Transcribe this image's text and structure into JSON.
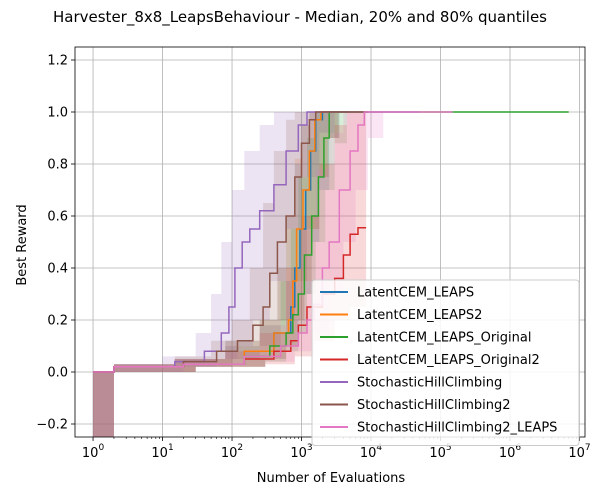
{
  "chart_data": {
    "type": "line",
    "title": "Harvester_8x8_LeapsBehaviour - Median, 20% and 80% quantiles",
    "xlabel": "Number of Evaluations",
    "ylabel": "Best Reward",
    "xscale": "log",
    "xlim": [
      0.55,
      12000000
    ],
    "ylim": [
      -0.25,
      1.25
    ],
    "grid": true,
    "legend_position": "bottom-right",
    "xticks": [
      {
        "value": 1,
        "base": "10",
        "exp": "0"
      },
      {
        "value": 10,
        "base": "10",
        "exp": "1"
      },
      {
        "value": 100,
        "base": "10",
        "exp": "2"
      },
      {
        "value": 1000,
        "base": "10",
        "exp": "3"
      },
      {
        "value": 10000,
        "base": "10",
        "exp": "4"
      },
      {
        "value": 100000,
        "base": "10",
        "exp": "5"
      },
      {
        "value": 1000000,
        "base": "10",
        "exp": "6"
      },
      {
        "value": 10000000,
        "base": "10",
        "exp": "7"
      }
    ],
    "yticks": [
      {
        "value": -0.2,
        "label": "−0.2"
      },
      {
        "value": 0.0,
        "label": "0.0"
      },
      {
        "value": 0.2,
        "label": "0.2"
      },
      {
        "value": 0.4,
        "label": "0.4"
      },
      {
        "value": 0.6,
        "label": "0.6"
      },
      {
        "value": 0.8,
        "label": "0.8"
      },
      {
        "value": 1.0,
        "label": "1.0"
      },
      {
        "value": 1.2,
        "label": "1.2"
      }
    ],
    "series": [
      {
        "name": "LatentCEM_LEAPS",
        "color": "#1f77b4",
        "median": [
          [
            1,
            0
          ],
          [
            2,
            0.02
          ],
          [
            20,
            0.03
          ],
          [
            150,
            0.08
          ],
          [
            400,
            0.15
          ],
          [
            700,
            0.25
          ],
          [
            800,
            0.4
          ],
          [
            950,
            0.55
          ],
          [
            1150,
            0.7
          ],
          [
            1350,
            0.85
          ],
          [
            1600,
            0.97
          ],
          [
            2000,
            1.0
          ],
          [
            5000,
            1.0
          ]
        ],
        "q20": [
          [
            1,
            -0.25
          ],
          [
            2,
            0
          ],
          [
            30,
            0.02
          ],
          [
            300,
            0.05
          ],
          [
            600,
            0.1
          ],
          [
            900,
            0.2
          ],
          [
            1100,
            0.3
          ],
          [
            1400,
            0.5
          ],
          [
            1800,
            0.7
          ],
          [
            2500,
            0.9
          ],
          [
            3500,
            1.0
          ],
          [
            5000,
            1.0
          ]
        ],
        "q80": [
          [
            1,
            0
          ],
          [
            2,
            0.03
          ],
          [
            15,
            0.05
          ],
          [
            80,
            0.12
          ],
          [
            250,
            0.2
          ],
          [
            450,
            0.4
          ],
          [
            600,
            0.6
          ],
          [
            800,
            0.8
          ],
          [
            1000,
            0.95
          ],
          [
            1300,
            1.0
          ],
          [
            5000,
            1.0
          ]
        ]
      },
      {
        "name": "LatentCEM_LEAPS2",
        "color": "#ff7f0e",
        "median": [
          [
            1,
            0
          ],
          [
            2,
            0.02
          ],
          [
            20,
            0.03
          ],
          [
            150,
            0.08
          ],
          [
            400,
            0.15
          ],
          [
            650,
            0.2
          ],
          [
            750,
            0.35
          ],
          [
            850,
            0.55
          ],
          [
            1050,
            0.7
          ],
          [
            1300,
            0.85
          ],
          [
            1550,
            0.97
          ],
          [
            1900,
            1.0
          ],
          [
            5000,
            1.0
          ]
        ],
        "q20": [
          [
            1,
            -0.25
          ],
          [
            2,
            0
          ],
          [
            30,
            0.02
          ],
          [
            300,
            0.05
          ],
          [
            600,
            0.1
          ],
          [
            850,
            0.2
          ],
          [
            1100,
            0.35
          ],
          [
            1400,
            0.55
          ],
          [
            1800,
            0.75
          ],
          [
            2400,
            0.9
          ],
          [
            3300,
            1.0
          ],
          [
            5000,
            1.0
          ]
        ],
        "q80": [
          [
            1,
            0
          ],
          [
            2,
            0.03
          ],
          [
            15,
            0.05
          ],
          [
            80,
            0.12
          ],
          [
            250,
            0.2
          ],
          [
            450,
            0.4
          ],
          [
            600,
            0.6
          ],
          [
            800,
            0.82
          ],
          [
            1000,
            0.95
          ],
          [
            1300,
            1.0
          ],
          [
            5000,
            1.0
          ]
        ]
      },
      {
        "name": "LatentCEM_LEAPS_Original",
        "color": "#2ca02c",
        "median": [
          [
            1,
            0
          ],
          [
            2,
            0.02
          ],
          [
            20,
            0.03
          ],
          [
            150,
            0.06
          ],
          [
            350,
            0.1
          ],
          [
            600,
            0.15
          ],
          [
            750,
            0.22
          ],
          [
            900,
            0.3
          ],
          [
            1100,
            0.45
          ],
          [
            1400,
            0.6
          ],
          [
            1750,
            0.75
          ],
          [
            2100,
            0.9
          ],
          [
            2500,
            1.0
          ],
          [
            7000000,
            1.0
          ]
        ],
        "q20": [
          [
            1,
            -0.25
          ],
          [
            2,
            0
          ],
          [
            30,
            0.02
          ],
          [
            300,
            0.04
          ],
          [
            600,
            0.08
          ],
          [
            900,
            0.15
          ],
          [
            1200,
            0.3
          ],
          [
            1600,
            0.5
          ],
          [
            2200,
            0.7
          ],
          [
            3000,
            0.88
          ],
          [
            4500,
            1.0
          ],
          [
            7000000,
            1.0
          ]
        ],
        "q80": [
          [
            1,
            0
          ],
          [
            2,
            0.03
          ],
          [
            15,
            0.05
          ],
          [
            80,
            0.1
          ],
          [
            250,
            0.18
          ],
          [
            500,
            0.35
          ],
          [
            700,
            0.55
          ],
          [
            900,
            0.75
          ],
          [
            1200,
            0.9
          ],
          [
            1600,
            1.0
          ],
          [
            7000000,
            1.0
          ]
        ]
      },
      {
        "name": "LatentCEM_LEAPS_Original2",
        "color": "#d62728",
        "median": [
          [
            1,
            0
          ],
          [
            2,
            0.02
          ],
          [
            20,
            0.03
          ],
          [
            150,
            0.05
          ],
          [
            400,
            0.08
          ],
          [
            700,
            0.12
          ],
          [
            900,
            0.18
          ],
          [
            1200,
            0.25
          ],
          [
            2000,
            0.3
          ],
          [
            3000,
            0.36
          ],
          [
            4000,
            0.45
          ],
          [
            5000,
            0.53
          ],
          [
            6500,
            0.555
          ],
          [
            8500,
            0.555
          ]
        ],
        "q20": [
          [
            1,
            -0.25
          ],
          [
            2,
            0
          ],
          [
            30,
            0.02
          ],
          [
            300,
            0.03
          ],
          [
            800,
            0.06
          ],
          [
            1500,
            0.12
          ],
          [
            3000,
            0.2
          ],
          [
            5000,
            0.25
          ],
          [
            8500,
            0.28
          ]
        ],
        "q80": [
          [
            1,
            0
          ],
          [
            2,
            0.03
          ],
          [
            15,
            0.05
          ],
          [
            80,
            0.08
          ],
          [
            250,
            0.15
          ],
          [
            600,
            0.4
          ],
          [
            1000,
            0.6
          ],
          [
            1800,
            0.8
          ],
          [
            3000,
            0.95
          ],
          [
            4500,
            1.0
          ],
          [
            8500,
            1.0
          ]
        ]
      },
      {
        "name": "StochasticHillClimbing",
        "color": "#9467bd",
        "median": [
          [
            1,
            0
          ],
          [
            2,
            0.02
          ],
          [
            15,
            0.04
          ],
          [
            40,
            0.08
          ],
          [
            70,
            0.15
          ],
          [
            90,
            0.25
          ],
          [
            110,
            0.4
          ],
          [
            140,
            0.5
          ],
          [
            180,
            0.55
          ],
          [
            250,
            0.62
          ],
          [
            400,
            0.72
          ],
          [
            600,
            0.85
          ],
          [
            900,
            0.95
          ],
          [
            1200,
            1.0
          ],
          [
            50000,
            1.0
          ]
        ],
        "q20": [
          [
            1,
            -0.25
          ],
          [
            2,
            0
          ],
          [
            20,
            0.02
          ],
          [
            60,
            0.05
          ],
          [
            120,
            0.1
          ],
          [
            200,
            0.2
          ],
          [
            350,
            0.35
          ],
          [
            600,
            0.55
          ],
          [
            1000,
            0.75
          ],
          [
            1800,
            0.92
          ],
          [
            3000,
            1.0
          ],
          [
            50000,
            1.0
          ]
        ],
        "q80": [
          [
            1,
            0
          ],
          [
            2,
            0.03
          ],
          [
            10,
            0.06
          ],
          [
            30,
            0.15
          ],
          [
            50,
            0.3
          ],
          [
            70,
            0.5
          ],
          [
            100,
            0.7
          ],
          [
            150,
            0.85
          ],
          [
            250,
            0.95
          ],
          [
            400,
            1.0
          ],
          [
            50000,
            1.0
          ]
        ]
      },
      {
        "name": "StochasticHillClimbing2",
        "color": "#8c564b",
        "median": [
          [
            1,
            0
          ],
          [
            2,
            0.02
          ],
          [
            20,
            0.04
          ],
          [
            60,
            0.08
          ],
          [
            120,
            0.12
          ],
          [
            200,
            0.18
          ],
          [
            280,
            0.25
          ],
          [
            350,
            0.38
          ],
          [
            450,
            0.5
          ],
          [
            600,
            0.6
          ],
          [
            800,
            0.75
          ],
          [
            1000,
            0.88
          ],
          [
            1300,
            0.97
          ],
          [
            1600,
            1.0
          ],
          [
            9000,
            1.0
          ]
        ],
        "q20": [
          [
            1,
            -0.25
          ],
          [
            2,
            0
          ],
          [
            30,
            0.02
          ],
          [
            100,
            0.05
          ],
          [
            250,
            0.1
          ],
          [
            500,
            0.2
          ],
          [
            800,
            0.35
          ],
          [
            1200,
            0.55
          ],
          [
            1800,
            0.75
          ],
          [
            2500,
            0.9
          ],
          [
            3500,
            1.0
          ],
          [
            9000,
            1.0
          ]
        ],
        "q80": [
          [
            1,
            0
          ],
          [
            2,
            0.03
          ],
          [
            15,
            0.06
          ],
          [
            50,
            0.12
          ],
          [
            100,
            0.2
          ],
          [
            180,
            0.4
          ],
          [
            280,
            0.65
          ],
          [
            400,
            0.85
          ],
          [
            600,
            0.97
          ],
          [
            800,
            1.0
          ],
          [
            9000,
            1.0
          ]
        ]
      },
      {
        "name": "StochasticHillClimbing2_LEAPS",
        "color": "#e377c2",
        "median": [
          [
            1,
            0
          ],
          [
            2,
            0.02
          ],
          [
            20,
            0.03
          ],
          [
            150,
            0.06
          ],
          [
            500,
            0.1
          ],
          [
            900,
            0.15
          ],
          [
            1200,
            0.2
          ],
          [
            1500,
            0.26
          ],
          [
            2000,
            0.4
          ],
          [
            2500,
            0.5
          ],
          [
            3500,
            0.7
          ],
          [
            5000,
            0.85
          ],
          [
            6500,
            0.95
          ],
          [
            8000,
            1.0
          ],
          [
            150000,
            1.0
          ]
        ],
        "q20": [
          [
            1,
            -0.25
          ],
          [
            2,
            0
          ],
          [
            30,
            0.02
          ],
          [
            300,
            0.04
          ],
          [
            800,
            0.08
          ],
          [
            1500,
            0.15
          ],
          [
            2500,
            0.3
          ],
          [
            4000,
            0.5
          ],
          [
            6000,
            0.7
          ],
          [
            9000,
            0.9
          ],
          [
            15000,
            1.0
          ],
          [
            150000,
            1.0
          ]
        ],
        "q80": [
          [
            1,
            0
          ],
          [
            2,
            0.03
          ],
          [
            15,
            0.05
          ],
          [
            80,
            0.1
          ],
          [
            250,
            0.18
          ],
          [
            600,
            0.35
          ],
          [
            1000,
            0.55
          ],
          [
            1600,
            0.78
          ],
          [
            2500,
            0.92
          ],
          [
            4000,
            1.0
          ],
          [
            150000,
            1.0
          ]
        ]
      }
    ]
  }
}
